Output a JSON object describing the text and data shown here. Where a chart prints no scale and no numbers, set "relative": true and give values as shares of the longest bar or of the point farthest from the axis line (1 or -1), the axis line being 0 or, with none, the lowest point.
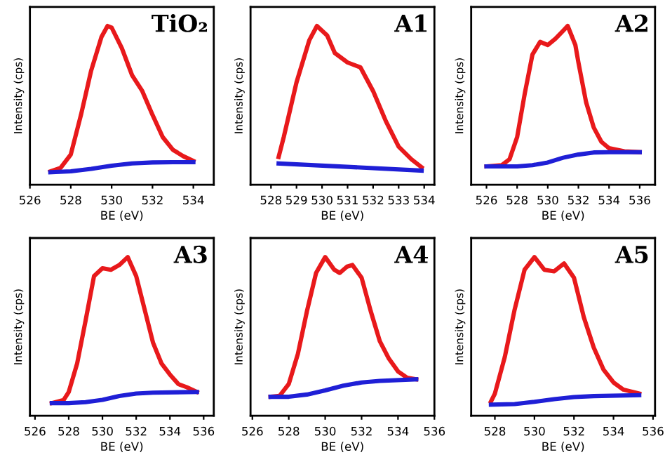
{
  "chart_data": [
    {
      "type": "line",
      "title": "TiO₂",
      "xlabel": "BE (eV)",
      "ylabel": "Intensity (cps)",
      "relative": true,
      "tick_labels": "x",
      "xlim": [
        526,
        535
      ],
      "xticks": [
        526,
        528,
        530,
        532,
        534
      ],
      "series": [
        {
          "color": "#e8191b",
          "x": [
            527,
            527.5,
            528,
            528.5,
            529,
            529.5,
            529.8,
            530,
            530.5,
            531,
            531.5,
            532,
            532.5,
            533,
            533.5,
            534
          ],
          "values": [
            0.084,
            0.106,
            0.19,
            0.44,
            0.72,
            0.93,
            1.0,
            0.99,
            0.86,
            0.69,
            0.59,
            0.44,
            0.3,
            0.22,
            0.18,
            0.15
          ]
        },
        {
          "color": "#1f1fd6",
          "x": [
            527,
            528,
            529,
            530,
            531,
            532,
            533,
            534
          ],
          "values": [
            0.078,
            0.084,
            0.1,
            0.12,
            0.134,
            0.14,
            0.142,
            0.142
          ]
        }
      ]
    },
    {
      "type": "line",
      "title": "A1",
      "xlabel": "BE (eV)",
      "ylabel": "Intensity (cps)",
      "relative": true,
      "tick_labels": "x",
      "xlim": [
        527.2,
        534.4
      ],
      "xticks": [
        528,
        529,
        530,
        531,
        532,
        533,
        534
      ],
      "series": [
        {
          "color": "#e8191b",
          "x": [
            528.3,
            528.5,
            529,
            529.5,
            529.8,
            530.2,
            530.5,
            531,
            531.5,
            532,
            532.5,
            533,
            533.5,
            533.9
          ],
          "values": [
            0.175,
            0.3,
            0.645,
            0.91,
            1.0,
            0.94,
            0.83,
            0.77,
            0.74,
            0.59,
            0.4,
            0.24,
            0.16,
            0.11
          ]
        },
        {
          "color": "#1f1fd6",
          "x": [
            528.3,
            533.9
          ],
          "values": [
            0.134,
            0.089
          ]
        }
      ]
    },
    {
      "type": "line",
      "title": "A2",
      "xlabel": "BE (eV)",
      "ylabel": "Intensity (cps)",
      "relative": true,
      "tick_labels": "x",
      "xlim": [
        525,
        537
      ],
      "xticks": [
        526,
        528,
        530,
        532,
        534,
        536
      ],
      "series": [
        {
          "color": "#e8191b",
          "x": [
            526,
            527,
            527.5,
            528,
            528.5,
            529,
            529.5,
            530,
            530.5,
            531,
            531.3,
            531.8,
            532,
            532.5,
            533,
            533.5,
            534,
            535,
            536
          ],
          "values": [
            0.115,
            0.123,
            0.16,
            0.3,
            0.575,
            0.82,
            0.9,
            0.88,
            0.92,
            0.97,
            1.0,
            0.88,
            0.77,
            0.52,
            0.36,
            0.27,
            0.23,
            0.21,
            0.205
          ]
        },
        {
          "color": "#1f1fd6",
          "x": [
            526,
            528,
            529,
            530,
            531,
            532,
            533,
            534,
            536
          ],
          "values": [
            0.115,
            0.115,
            0.123,
            0.14,
            0.17,
            0.19,
            0.203,
            0.205,
            0.205
          ]
        }
      ]
    },
    {
      "type": "line",
      "title": "A3",
      "xlabel": "BE (eV)",
      "ylabel": "Intensity (cps)",
      "relative": true,
      "tick_labels": "x",
      "xlim": [
        525.7,
        536.6
      ],
      "xticks": [
        526,
        528,
        530,
        532,
        534,
        536
      ],
      "series": [
        {
          "color": "#e8191b",
          "x": [
            527,
            527.7,
            528,
            528.5,
            529,
            529.5,
            530,
            530.5,
            531,
            531.5,
            532,
            532.5,
            533,
            533.5,
            534,
            534.5,
            535,
            535.6
          ],
          "values": [
            0.08,
            0.1,
            0.15,
            0.33,
            0.6,
            0.88,
            0.93,
            0.92,
            0.95,
            1.0,
            0.88,
            0.67,
            0.46,
            0.33,
            0.26,
            0.2,
            0.18,
            0.15
          ]
        },
        {
          "color": "#1f1fd6",
          "x": [
            527,
            528,
            529,
            530,
            531,
            532,
            533,
            535.6
          ],
          "values": [
            0.08,
            0.08,
            0.086,
            0.1,
            0.125,
            0.14,
            0.146,
            0.15
          ]
        }
      ]
    },
    {
      "type": "line",
      "title": "A4",
      "xlabel": "BE (eV)",
      "ylabel": "Intensity (cps)",
      "relative": true,
      "tick_labels": "x",
      "xlim": [
        525.9,
        536
      ],
      "xticks": [
        526,
        528,
        530,
        532,
        534,
        536
      ],
      "series": [
        {
          "color": "#e8191b",
          "x": [
            527,
            527.5,
            528,
            528.5,
            529,
            529.5,
            530,
            530.5,
            530.8,
            531.2,
            531.5,
            532,
            532.5,
            533,
            533.5,
            534,
            534.5,
            535
          ],
          "values": [
            0.12,
            0.126,
            0.2,
            0.39,
            0.66,
            0.9,
            1.0,
            0.92,
            0.9,
            0.94,
            0.95,
            0.87,
            0.66,
            0.47,
            0.36,
            0.28,
            0.24,
            0.23
          ]
        },
        {
          "color": "#1f1fd6",
          "x": [
            527,
            528,
            529,
            530,
            531,
            532,
            533,
            535
          ],
          "values": [
            0.12,
            0.12,
            0.134,
            0.16,
            0.19,
            0.21,
            0.22,
            0.23
          ]
        }
      ]
    },
    {
      "type": "line",
      "title": "A5",
      "xlabel": "BE (eV)",
      "ylabel": "Intensity (cps)",
      "relative": true,
      "tick_labels": "x",
      "xlim": [
        526.8,
        536.1
      ],
      "xticks": [
        528,
        530,
        532,
        534,
        536
      ],
      "series": [
        {
          "color": "#e8191b",
          "x": [
            527.8,
            528,
            528.5,
            529,
            529.5,
            530,
            530.5,
            531,
            531.5,
            532,
            532.5,
            533,
            533.5,
            534,
            534.5,
            535.3
          ],
          "values": [
            0.09,
            0.14,
            0.37,
            0.67,
            0.92,
            1.0,
            0.92,
            0.91,
            0.96,
            0.87,
            0.62,
            0.43,
            0.29,
            0.21,
            0.165,
            0.14
          ]
        },
        {
          "color": "#1f1fd6",
          "x": [
            527.8,
            529,
            530,
            531,
            532,
            533,
            535.3
          ],
          "values": [
            0.07,
            0.074,
            0.088,
            0.105,
            0.118,
            0.124,
            0.13
          ]
        }
      ]
    }
  ]
}
